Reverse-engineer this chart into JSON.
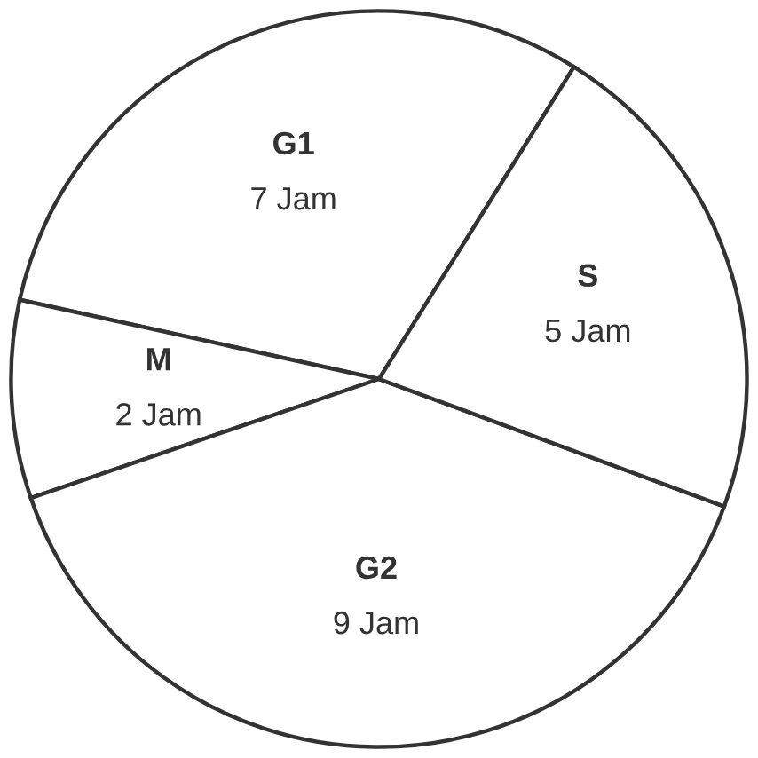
{
  "chart_data": {
    "type": "pie",
    "categories": [
      "G1",
      "M",
      "G2",
      "S"
    ],
    "values": [
      7,
      2,
      9,
      5
    ],
    "value_labels": [
      "7 Jam",
      "2 Jam",
      "9 Jam",
      "5 Jam"
    ],
    "colors": [
      "#ffffff",
      "#ffffff",
      "#ffffff",
      "#ffffff"
    ],
    "legend": false
  }
}
